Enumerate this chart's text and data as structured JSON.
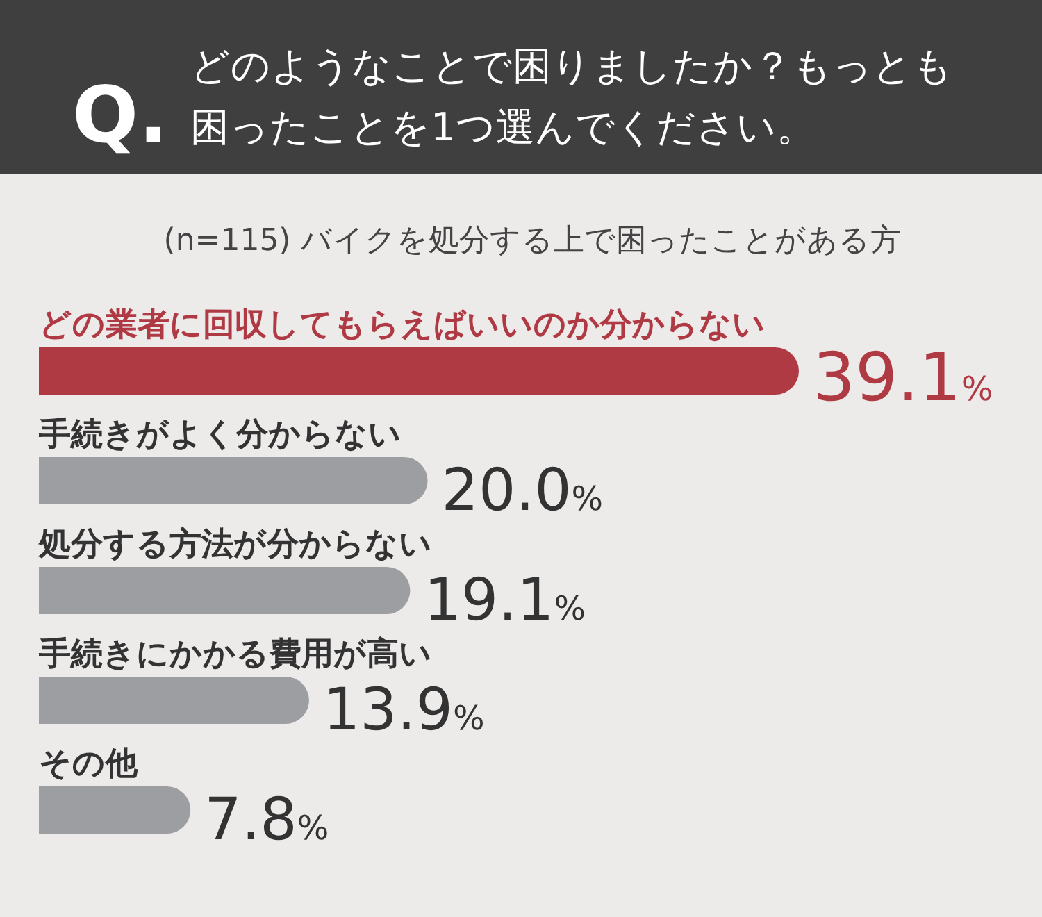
{
  "chart_data": {
    "type": "bar",
    "orientation": "horizontal",
    "title": "Q. どのようなことで困りましたか？もっとも困ったことを1つ選んでください。",
    "subtitle": "(n=115) バイクを処分する上で困ったことがある方",
    "categories": [
      "どの業者に回収してもらえばいいのか分からない",
      "手続きがよく分からない",
      "処分する方法が分からない",
      "手続きにかかる費用が高い",
      "その他"
    ],
    "values": [
      39.1,
      20.0,
      19.1,
      13.9,
      7.8
    ],
    "colors": [
      "#b03a44",
      "#9d9ea2",
      "#9d9ea2",
      "#9d9ea2",
      "#9d9ea2"
    ],
    "value_labels": [
      "39.1%",
      "20.0%",
      "19.1%",
      "13.9%",
      "7.8%"
    ]
  }
}
